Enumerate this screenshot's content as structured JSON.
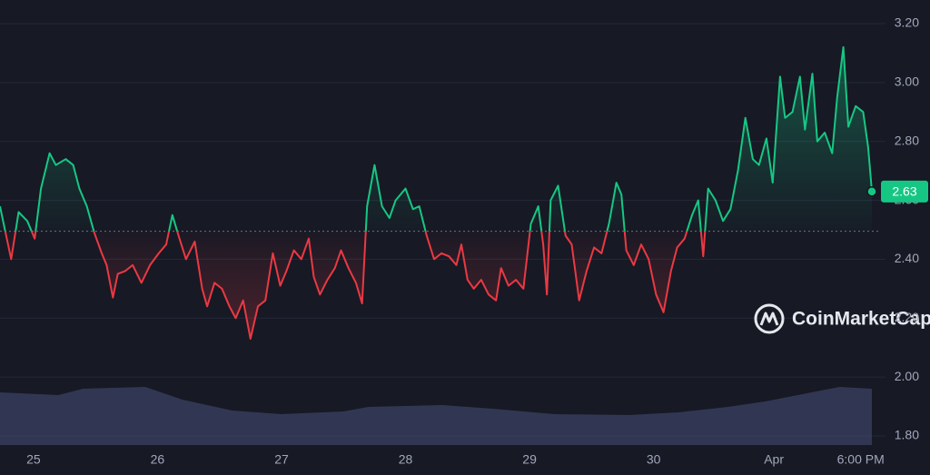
{
  "chart_data": {
    "type": "line",
    "watermark": "CoinMarketCap",
    "colors": {
      "up": "#16c784",
      "down": "#ea3943",
      "volume": "#3b4263",
      "label_bg": "#16c784"
    },
    "baseline": 2.495,
    "xlim": [
      24.73,
      31.76
    ],
    "xticks": [
      {
        "value": 25,
        "label": "25"
      },
      {
        "value": 26,
        "label": "26"
      },
      {
        "value": 27,
        "label": "27"
      },
      {
        "value": 28,
        "label": "28"
      },
      {
        "value": 29,
        "label": "29"
      },
      {
        "value": 30,
        "label": "30"
      },
      {
        "value": 30.97,
        "label": "Apr"
      },
      {
        "value": 31.67,
        "label": "6:00 PM"
      }
    ],
    "ylim": [
      1.8,
      3.2
    ],
    "yticks": [
      {
        "value": 1.8,
        "label": "1.80"
      },
      {
        "value": 2.0,
        "label": "2.00"
      },
      {
        "value": 2.2,
        "label": "2.20"
      },
      {
        "value": 2.4,
        "label": "2.40"
      },
      {
        "value": 2.6,
        "label": "2.60"
      },
      {
        "value": 2.8,
        "label": "2.80"
      },
      {
        "value": 3.0,
        "label": "3.00"
      },
      {
        "value": 3.2,
        "label": "3.20"
      }
    ],
    "grid": true,
    "x": [
      24.73,
      24.78,
      24.82,
      24.88,
      24.95,
      25.01,
      25.06,
      25.13,
      25.18,
      25.26,
      25.32,
      25.37,
      25.43,
      25.49,
      25.55,
      25.59,
      25.64,
      25.68,
      25.74,
      25.8,
      25.87,
      25.94,
      26.01,
      26.07,
      26.12,
      26.17,
      26.23,
      26.3,
      26.36,
      26.4,
      26.46,
      26.52,
      26.58,
      26.63,
      26.69,
      26.75,
      26.81,
      26.87,
      26.93,
      26.99,
      27.04,
      27.1,
      27.16,
      27.22,
      27.26,
      27.31,
      27.37,
      27.43,
      27.48,
      27.54,
      27.6,
      27.65,
      27.69,
      27.75,
      27.81,
      27.87,
      27.92,
      28.0,
      28.06,
      28.11,
      28.17,
      28.23,
      28.29,
      28.35,
      28.41,
      28.45,
      28.5,
      28.55,
      28.61,
      28.67,
      28.73,
      28.77,
      28.83,
      28.89,
      28.95,
      29.01,
      29.07,
      29.11,
      29.14,
      29.17,
      29.23,
      29.29,
      29.34,
      29.4,
      29.46,
      29.52,
      29.58,
      29.64,
      29.7,
      29.74,
      29.78,
      29.84,
      29.9,
      29.96,
      30.02,
      30.08,
      30.14,
      30.19,
      30.25,
      30.31,
      30.36,
      30.4,
      30.44,
      30.5,
      30.56,
      30.62,
      30.68,
      30.74,
      30.8,
      30.85,
      30.91,
      30.96,
      31.02,
      31.06,
      31.12,
      31.18,
      31.22,
      31.28,
      31.32,
      31.38,
      31.44,
      31.48,
      31.53,
      31.57,
      31.63,
      31.69,
      31.73,
      31.76
    ],
    "values": [
      2.58,
      2.48,
      2.4,
      2.56,
      2.53,
      2.47,
      2.64,
      2.76,
      2.72,
      2.74,
      2.72,
      2.64,
      2.58,
      2.49,
      2.42,
      2.38,
      2.27,
      2.35,
      2.36,
      2.38,
      2.32,
      2.38,
      2.42,
      2.45,
      2.55,
      2.48,
      2.4,
      2.46,
      2.3,
      2.24,
      2.32,
      2.3,
      2.24,
      2.2,
      2.26,
      2.13,
      2.24,
      2.26,
      2.42,
      2.31,
      2.36,
      2.43,
      2.4,
      2.47,
      2.34,
      2.28,
      2.33,
      2.37,
      2.43,
      2.37,
      2.32,
      2.25,
      2.58,
      2.72,
      2.58,
      2.54,
      2.6,
      2.64,
      2.57,
      2.58,
      2.48,
      2.4,
      2.42,
      2.41,
      2.38,
      2.45,
      2.33,
      2.3,
      2.33,
      2.28,
      2.26,
      2.37,
      2.31,
      2.33,
      2.3,
      2.52,
      2.58,
      2.45,
      2.28,
      2.6,
      2.65,
      2.48,
      2.45,
      2.26,
      2.36,
      2.44,
      2.42,
      2.52,
      2.66,
      2.62,
      2.43,
      2.38,
      2.45,
      2.4,
      2.28,
      2.22,
      2.36,
      2.44,
      2.47,
      2.55,
      2.6,
      2.41,
      2.64,
      2.6,
      2.53,
      2.57,
      2.7,
      2.88,
      2.74,
      2.72,
      2.81,
      2.66,
      3.02,
      2.88,
      2.9,
      3.02,
      2.84,
      3.03,
      2.8,
      2.83,
      2.76,
      2.95,
      3.12,
      2.85,
      2.92,
      2.9,
      2.78,
      2.63
    ],
    "volume": {
      "x": [
        24.73,
        25.2,
        25.4,
        25.9,
        26.2,
        26.6,
        27.0,
        27.5,
        27.7,
        28.3,
        28.7,
        29.2,
        29.8,
        30.2,
        30.6,
        30.9,
        31.2,
        31.5,
        31.76
      ],
      "values": [
        58,
        55,
        62,
        64,
        50,
        38,
        34,
        37,
        42,
        44,
        40,
        34,
        33,
        36,
        42,
        48,
        56,
        64,
        62
      ]
    }
  }
}
